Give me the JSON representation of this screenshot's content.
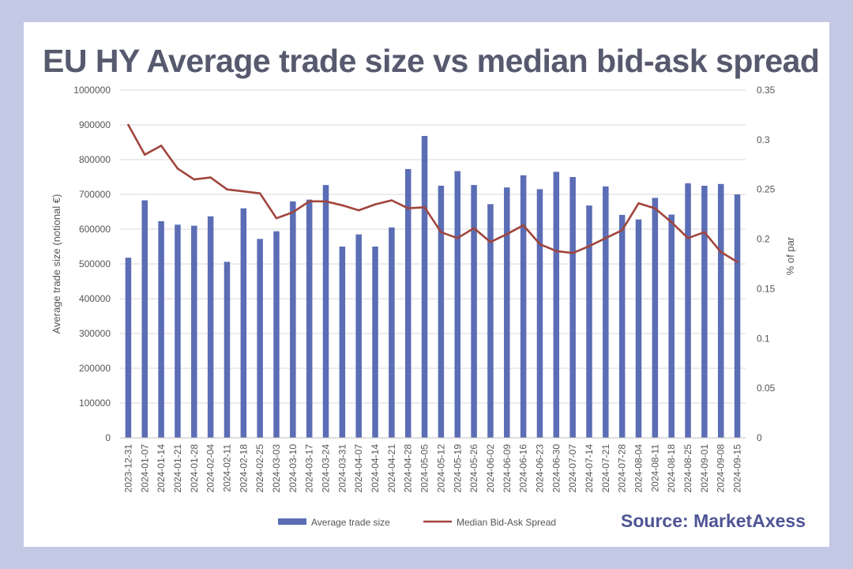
{
  "title": "EU HY Average trade size vs median bid-ask spread",
  "source": "Source: MarketAxess",
  "chart_data": {
    "type": "bar",
    "categories": [
      "2023-12-31",
      "2024-01-07",
      "2024-01-14",
      "2024-01-21",
      "2024-01-28",
      "2024-02-04",
      "2024-02-11",
      "2024-02-18",
      "2024-02-25",
      "2024-03-03",
      "2024-03-10",
      "2024-03-17",
      "2024-03-24",
      "2024-03-31",
      "2024-04-07",
      "2024-04-14",
      "2024-04-21",
      "2024-04-28",
      "2024-05-05",
      "2024-05-12",
      "2024-05-19",
      "2024-05-26",
      "2024-06-02",
      "2024-06-09",
      "2024-06-16",
      "2024-06-23",
      "2024-06-30",
      "2024-07-07",
      "2024-07-14",
      "2024-07-21",
      "2024-07-28",
      "2024-08-04",
      "2024-08-11",
      "2024-08-18",
      "2024-08-25",
      "2024-09-01",
      "2024-09-08",
      "2024-09-15"
    ],
    "series": [
      {
        "name": "Average trade size",
        "type": "bar",
        "axis": "left",
        "color": "#5b6db5",
        "values": [
          518000,
          683000,
          623000,
          613000,
          610000,
          637000,
          506000,
          660000,
          572000,
          594000,
          680000,
          685000,
          727000,
          550000,
          585000,
          550000,
          605000,
          773000,
          868000,
          725000,
          767000,
          727000,
          672000,
          720000,
          755000,
          715000,
          765000,
          750000,
          668000,
          723000,
          641000,
          628000,
          690000,
          642000,
          732000,
          725000,
          730000,
          700000
        ]
      },
      {
        "name": "Median Bid-Ask Spread",
        "type": "line",
        "axis": "right",
        "color": "#a0453c",
        "values": [
          0.315,
          0.285,
          0.294,
          0.271,
          0.26,
          0.262,
          0.25,
          0.248,
          0.246,
          0.221,
          0.227,
          0.238,
          0.238,
          0.234,
          0.229,
          0.235,
          0.239,
          0.231,
          0.232,
          0.207,
          0.201,
          0.211,
          0.197,
          0.205,
          0.214,
          0.195,
          0.188,
          0.186,
          0.193,
          0.201,
          0.209,
          0.236,
          0.231,
          0.217,
          0.201,
          0.207,
          0.187,
          0.177
        ]
      }
    ],
    "ylabel": "Average trade size (notional €)",
    "y2label": "% of par",
    "ylim": [
      0,
      1000000
    ],
    "y2lim": [
      0,
      0.35
    ],
    "yticks": [
      "0",
      "100000",
      "200000",
      "300000",
      "400000",
      "500000",
      "600000",
      "700000",
      "800000",
      "900000",
      "1000000"
    ],
    "y2ticks": [
      "0",
      "0.05",
      "0.1",
      "0.15",
      "0.2",
      "0.25",
      "0.3",
      "0.35"
    ],
    "grid": true,
    "legend_position": "bottom"
  }
}
